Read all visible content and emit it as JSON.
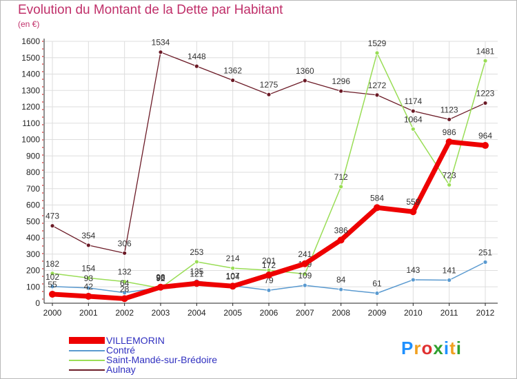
{
  "header": {
    "title": "Evolution du Montant de la Dette par Habitant",
    "subtitle": "(en €)"
  },
  "brand": {
    "text": "Proxiti",
    "colors": [
      "#1e90ff",
      "#f0a020",
      "#e03030",
      "#30a030",
      "#1e90ff",
      "#f0a020",
      "#30a030"
    ]
  },
  "colors": {
    "title": "#c0306a",
    "legend_text": "#3030c0",
    "grid": "#dddddd",
    "axis": "#222222"
  },
  "chart_data": {
    "type": "line",
    "title": "Evolution du Montant de la Dette par Habitant",
    "ylabel": "(en €)",
    "xlabel": "",
    "x": [
      "2000",
      "2001",
      "2002",
      "2003",
      "2004",
      "2005",
      "2006",
      "2007",
      "2008",
      "2009",
      "2010",
      "2011",
      "2012"
    ],
    "yticks": [
      0,
      100,
      200,
      300,
      400,
      500,
      600,
      700,
      800,
      900,
      1000,
      1100,
      1200,
      1300,
      1400,
      1500,
      1600
    ],
    "ylim": [
      0,
      1600
    ],
    "grid": true,
    "legend_position": "bottom-left",
    "series": [
      {
        "name": "Aulnay",
        "color": "#6b1a26",
        "width": 1.3,
        "values": [
          473,
          354,
          306,
          1534,
          1448,
          1362,
          1275,
          1360,
          1296,
          1272,
          1174,
          1123,
          1223
        ],
        "labels": [
          "473",
          "354",
          "306",
          "1534",
          "1448",
          "1362",
          "1275",
          "1360",
          "1296",
          "1272",
          "1174",
          "1123",
          "1223"
        ]
      },
      {
        "name": "Saint-Mandé-sur-Brédoire",
        "color": "#99dd55",
        "width": 1.5,
        "values": [
          182,
          154,
          132,
          92,
          253,
          214,
          201,
          179,
          712,
          1529,
          1064,
          723,
          1481
        ],
        "labels": [
          "182",
          "154",
          "132",
          "92",
          "253",
          "214",
          "201",
          "179",
          "712",
          "1529",
          "1064",
          "723",
          "1481"
        ]
      },
      {
        "name": "Contré",
        "color": "#5a9ad0",
        "width": 1.5,
        "values": [
          102,
          93,
          64,
          96,
          135,
          107,
          79,
          109,
          84,
          61,
          143,
          141,
          251
        ],
        "labels": [
          "102",
          "93",
          "64",
          "96",
          "135",
          "107",
          "79",
          "109",
          "84",
          "61",
          "143",
          "141",
          "251"
        ]
      },
      {
        "name": "VILLEMORIN",
        "color": "#ee0000",
        "width": 7,
        "values": [
          55,
          42,
          28,
          98,
          121,
          104,
          172,
          241,
          386,
          584,
          559,
          986,
          964
        ],
        "labels": [
          "55",
          "42",
          "28",
          "98",
          "121",
          "104",
          "172",
          "241",
          "386",
          "584",
          "559",
          "986",
          "964"
        ]
      }
    ],
    "legend": [
      {
        "name": "VILLEMORIN",
        "color": "#ee0000",
        "thick": true
      },
      {
        "name": "Contré",
        "color": "#5a9ad0",
        "thick": false
      },
      {
        "name": "Saint-Mandé-sur-Brédoire",
        "color": "#99dd55",
        "thick": false
      },
      {
        "name": "Aulnay",
        "color": "#6b1a26",
        "thick": false
      }
    ]
  }
}
